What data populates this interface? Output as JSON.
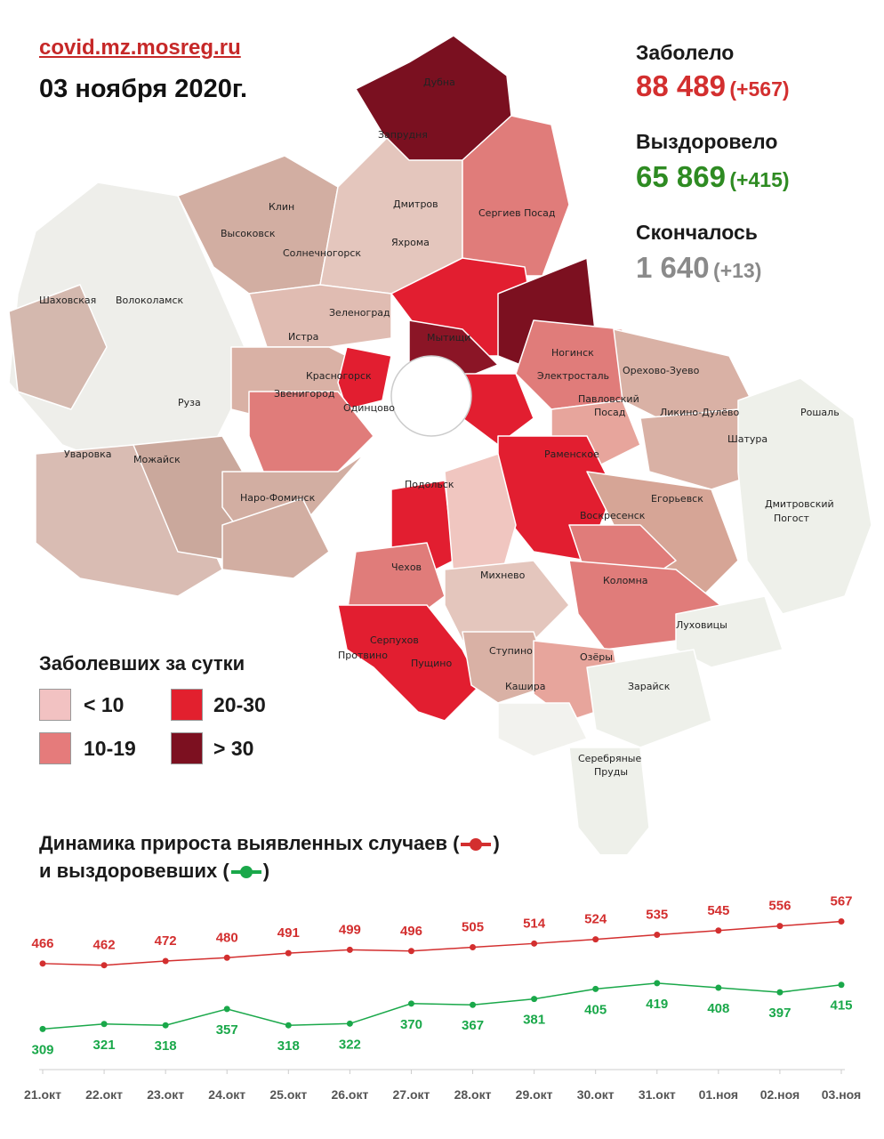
{
  "header": {
    "source": "covid.mz.mosreg.ru",
    "date": "03 ноября 2020г."
  },
  "stats": {
    "infected": {
      "label": "Заболело",
      "value": "88 489",
      "delta": "(+567)",
      "color": "#d32f2f"
    },
    "recovered": {
      "label": "Выздоровело",
      "value": "65 869",
      "delta": "(+415)",
      "color": "#2e8b22"
    },
    "deceased": {
      "label": "Скончалось",
      "value": "1 640",
      "delta": "(+13)",
      "color": "#8a8a8a"
    }
  },
  "legend": {
    "title": "Заболевших за сутки",
    "items": [
      {
        "label": "< 10",
        "color": "#f2c2c2"
      },
      {
        "label": "20-30",
        "color": "#e2202e"
      },
      {
        "label": "10-19",
        "color": "#e57b7b"
      },
      {
        "label": "> 30",
        "color": "#7c1020"
      }
    ]
  },
  "map": {
    "cities": [
      "Дубна",
      "Запрудня",
      "Дмитров",
      "Сергиев Посад",
      "Клин",
      "Высоковск",
      "Яхрома",
      "Солнечногорск",
      "Шаховская",
      "Волоколамск",
      "Зеленоград",
      "Истра",
      "Мытищи",
      "Красногорск",
      "Ногинск",
      "Электросталь",
      "Орехово-Зуево",
      "Звенигород",
      "Одинцово",
      "Павловский Посад",
      "Ликино-Дулёво",
      "Рошаль",
      "Руза",
      "Шатура",
      "Уваровка",
      "Можайск",
      "Раменское",
      "Наро-Фоминск",
      "Подольск",
      "Егорьевск",
      "Дмитровский Погост",
      "Воскресенск",
      "Чехов",
      "Михнево",
      "Коломна",
      "Серпухов",
      "Пущино",
      "Ступино",
      "Озёры",
      "Луховицы",
      "Протвино",
      "Кашира",
      "Зарайск",
      "Серебряные Пруды"
    ]
  },
  "dynamics": {
    "title_line1": "Динамика прироста выявленных случаев (",
    "title_line1_end": ")",
    "title_line2": "и выздоровевших (",
    "title_line2_end": ")"
  },
  "chart_data": {
    "type": "line",
    "title": "Динамика прироста выявленных случаев и выздоровевших",
    "categories": [
      "21.окт",
      "22.окт",
      "23.окт",
      "24.окт",
      "25.окт",
      "26.окт",
      "27.окт",
      "28.окт",
      "29.окт",
      "30.окт",
      "31.окт",
      "01.ноя",
      "02.ноя",
      "03.ноя"
    ],
    "series": [
      {
        "name": "",
        "color": "#d32f2f",
        "values": [
          466,
          462,
          472,
          480,
          491,
          499,
          496,
          505,
          514,
          524,
          535,
          545,
          556,
          567
        ]
      },
      {
        "name": "",
        "color": "#1aa84a",
        "values": [
          309,
          321,
          318,
          357,
          318,
          322,
          370,
          367,
          381,
          405,
          419,
          408,
          397,
          415
        ]
      }
    ],
    "xlabel": "",
    "ylabel": "",
    "grid": false
  }
}
